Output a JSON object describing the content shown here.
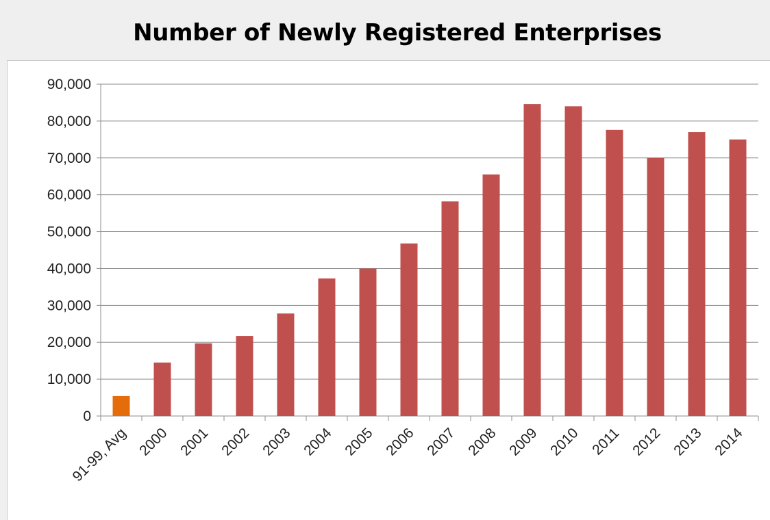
{
  "chart_data": {
    "type": "bar",
    "title": "Number of Newly Registered Enterprises",
    "xlabel": "",
    "ylabel": "",
    "categories": [
      "91-99, Avg",
      "2000",
      "2001",
      "2002",
      "2003",
      "2004",
      "2005",
      "2006",
      "2007",
      "2008",
      "2009",
      "2010",
      "2011",
      "2012",
      "2013",
      "2014"
    ],
    "values": [
      5400,
      14500,
      19700,
      21700,
      27800,
      37300,
      40000,
      46800,
      58200,
      65500,
      84600,
      84000,
      77600,
      70000,
      77000,
      75000
    ],
    "bar_colors": [
      "#e46c0a",
      "#c0504d",
      "#c0504d",
      "#c0504d",
      "#c0504d",
      "#c0504d",
      "#c0504d",
      "#c0504d",
      "#c0504d",
      "#c0504d",
      "#c0504d",
      "#c0504d",
      "#c0504d",
      "#c0504d",
      "#c0504d",
      "#c0504d"
    ],
    "ylim": [
      0,
      90000
    ],
    "yticks": [
      0,
      10000,
      20000,
      30000,
      40000,
      50000,
      60000,
      70000,
      80000,
      90000
    ],
    "ytick_labels": [
      "0",
      "10,000",
      "20,000",
      "30,000",
      "40,000",
      "50,000",
      "60,000",
      "70,000",
      "80,000",
      "90,000"
    ],
    "grid": true,
    "legend": "none"
  }
}
